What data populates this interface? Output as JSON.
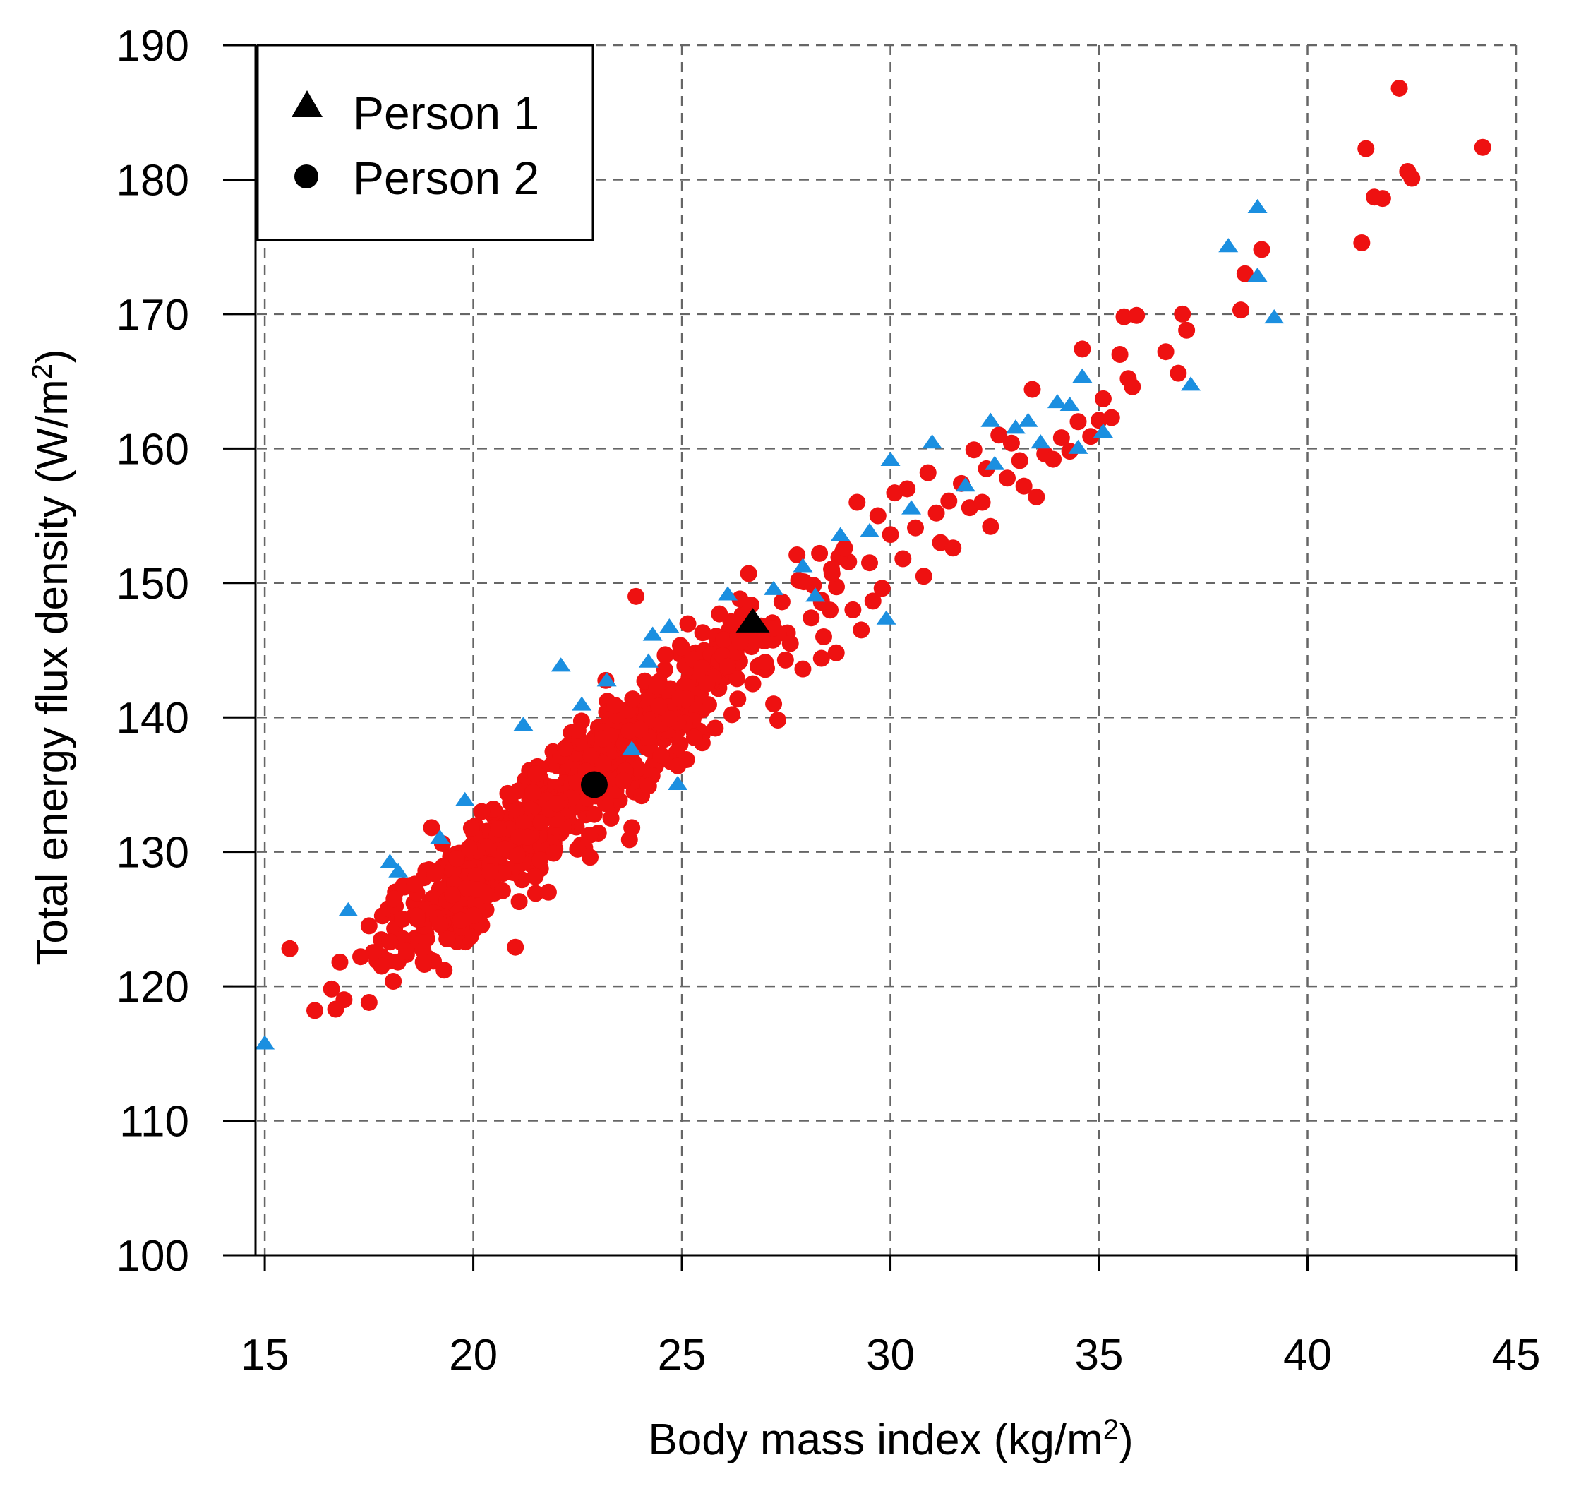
{
  "chart_data": {
    "type": "scatter",
    "title": "",
    "xlabel": "Body mass index (kg/m",
    "xlabel_sup": "2",
    "xlabel_end": ")",
    "ylabel": "Total energy flux density (W/m",
    "ylabel_sup": "2",
    "ylabel_end": ")",
    "xlim": [
      14,
      45
    ],
    "ylim": [
      100,
      190
    ],
    "xticks": [
      15,
      20,
      25,
      30,
      35,
      40,
      45
    ],
    "yticks": [
      100,
      110,
      120,
      130,
      140,
      150,
      160,
      170,
      180,
      190
    ],
    "grid": true,
    "legend_position": "top-left",
    "legend": [
      {
        "label": "Person 1",
        "marker": "triangle"
      },
      {
        "label": "Person 2",
        "marker": "circle"
      }
    ],
    "colors": {
      "person1_points": "#1b8fe0",
      "person2_points": "#ee1111",
      "highlight": "#000000"
    },
    "series": [
      {
        "name": "Person 1",
        "marker": "triangle",
        "points": [
          [
            15.0,
            115.7
          ],
          [
            17.0,
            125.6
          ],
          [
            18.0,
            129.2
          ],
          [
            18.2,
            128.5
          ],
          [
            19.2,
            131.0
          ],
          [
            19.8,
            133.8
          ],
          [
            21.2,
            139.4
          ],
          [
            22.1,
            143.8
          ],
          [
            22.6,
            140.9
          ],
          [
            23.2,
            142.7
          ],
          [
            24.3,
            146.1
          ],
          [
            24.7,
            146.7
          ],
          [
            24.9,
            135.0
          ],
          [
            26.1,
            149.1
          ],
          [
            27.2,
            149.5
          ],
          [
            27.9,
            151.2
          ],
          [
            28.2,
            149.0
          ],
          [
            28.8,
            153.5
          ],
          [
            29.5,
            153.8
          ],
          [
            29.9,
            147.3
          ],
          [
            30.0,
            159.1
          ],
          [
            30.5,
            155.5
          ],
          [
            31.0,
            160.4
          ],
          [
            31.8,
            157.2
          ],
          [
            32.4,
            162.0
          ],
          [
            32.5,
            158.8
          ],
          [
            33.0,
            161.5
          ],
          [
            33.3,
            162.0
          ],
          [
            33.6,
            160.4
          ],
          [
            34.0,
            163.4
          ],
          [
            34.3,
            163.2
          ],
          [
            34.6,
            165.3
          ],
          [
            34.5,
            160.0
          ],
          [
            35.1,
            161.2
          ],
          [
            37.2,
            164.7
          ],
          [
            38.1,
            175.0
          ],
          [
            38.8,
            177.9
          ],
          [
            38.8,
            172.8
          ],
          [
            39.2,
            169.7
          ],
          [
            23.8,
            137.6
          ],
          [
            24.2,
            144.1
          ]
        ]
      },
      {
        "name": "Person 2",
        "marker": "circle",
        "points": [
          [
            15.6,
            122.8
          ],
          [
            16.2,
            118.2
          ],
          [
            16.6,
            119.8
          ],
          [
            16.7,
            118.3
          ],
          [
            16.8,
            121.8
          ],
          [
            16.9,
            119.0
          ],
          [
            17.3,
            122.2
          ],
          [
            17.5,
            118.8
          ],
          [
            17.5,
            124.5
          ],
          [
            17.8,
            121.5
          ],
          [
            18.0,
            123.3
          ],
          [
            18.1,
            126.5
          ],
          [
            18.3,
            125.0
          ],
          [
            18.4,
            122.6
          ],
          [
            18.6,
            127.6
          ],
          [
            18.8,
            121.8
          ],
          [
            19.0,
            131.8
          ],
          [
            19.2,
            124.6
          ],
          [
            19.3,
            121.2
          ],
          [
            19.5,
            126.8
          ],
          [
            19.6,
            129.5
          ],
          [
            19.7,
            124.9
          ],
          [
            19.9,
            130.3
          ],
          [
            20.1,
            127.2
          ],
          [
            20.2,
            133.0
          ],
          [
            20.4,
            128.5
          ],
          [
            20.6,
            131.7
          ],
          [
            20.7,
            127.1
          ],
          [
            20.9,
            134.2
          ],
          [
            21.1,
            126.3
          ],
          [
            21.3,
            131.1
          ],
          [
            21.5,
            135.8
          ],
          [
            21.6,
            129.4
          ],
          [
            21.8,
            127.0
          ],
          [
            22.0,
            133.6
          ],
          [
            22.2,
            137.7
          ],
          [
            22.5,
            130.2
          ],
          [
            22.7,
            136.0
          ],
          [
            22.8,
            129.6
          ],
          [
            23.0,
            134.4
          ],
          [
            23.1,
            138.4
          ],
          [
            23.3,
            132.5
          ],
          [
            23.4,
            140.9
          ],
          [
            23.6,
            135.3
          ],
          [
            23.8,
            131.8
          ],
          [
            23.9,
            149.0
          ],
          [
            24.0,
            139.1
          ],
          [
            24.2,
            134.9
          ],
          [
            24.4,
            142.3
          ],
          [
            24.5,
            137.2
          ],
          [
            24.6,
            144.6
          ],
          [
            24.7,
            139.9
          ],
          [
            24.9,
            136.4
          ],
          [
            25.0,
            145.2
          ],
          [
            25.1,
            141.4
          ],
          [
            25.3,
            138.5
          ],
          [
            25.5,
            146.3
          ],
          [
            25.6,
            142.5
          ],
          [
            25.8,
            139.2
          ],
          [
            25.9,
            147.7
          ],
          [
            26.1,
            143.8
          ],
          [
            26.2,
            140.2
          ],
          [
            26.4,
            145.6
          ],
          [
            26.6,
            150.7
          ],
          [
            26.7,
            142.5
          ],
          [
            26.9,
            146.8
          ],
          [
            27.0,
            144.1
          ],
          [
            27.2,
            141.0
          ],
          [
            27.3,
            139.8
          ],
          [
            27.4,
            148.6
          ],
          [
            27.6,
            145.5
          ],
          [
            27.8,
            150.2
          ],
          [
            27.9,
            143.6
          ],
          [
            28.1,
            147.4
          ],
          [
            28.3,
            152.2
          ],
          [
            28.4,
            146.0
          ],
          [
            28.6,
            150.7
          ],
          [
            28.7,
            144.8
          ],
          [
            28.9,
            152.6
          ],
          [
            29.1,
            148.0
          ],
          [
            29.2,
            156.0
          ],
          [
            29.3,
            146.5
          ],
          [
            29.5,
            151.5
          ],
          [
            29.7,
            155.0
          ],
          [
            29.8,
            149.6
          ],
          [
            30.0,
            153.6
          ],
          [
            30.1,
            156.7
          ],
          [
            30.3,
            151.8
          ],
          [
            30.4,
            157.0
          ],
          [
            30.6,
            154.1
          ],
          [
            30.8,
            150.5
          ],
          [
            30.9,
            158.2
          ],
          [
            31.1,
            155.2
          ],
          [
            31.2,
            153.0
          ],
          [
            31.4,
            156.1
          ],
          [
            31.5,
            152.6
          ],
          [
            31.7,
            157.4
          ],
          [
            31.9,
            155.6
          ],
          [
            32.0,
            159.9
          ],
          [
            32.2,
            156.0
          ],
          [
            32.3,
            158.5
          ],
          [
            32.4,
            154.2
          ],
          [
            32.6,
            161.0
          ],
          [
            32.8,
            157.8
          ],
          [
            32.9,
            160.4
          ],
          [
            33.1,
            159.1
          ],
          [
            33.2,
            157.2
          ],
          [
            33.4,
            164.4
          ],
          [
            33.5,
            156.4
          ],
          [
            33.7,
            159.6
          ],
          [
            33.9,
            159.2
          ],
          [
            34.1,
            160.8
          ],
          [
            34.3,
            159.8
          ],
          [
            34.5,
            162.0
          ],
          [
            34.6,
            167.4
          ],
          [
            34.8,
            160.9
          ],
          [
            35.0,
            162.1
          ],
          [
            35.1,
            163.7
          ],
          [
            35.3,
            162.3
          ],
          [
            35.5,
            167.0
          ],
          [
            35.6,
            169.8
          ],
          [
            35.7,
            165.2
          ],
          [
            35.8,
            164.6
          ],
          [
            35.9,
            169.9
          ],
          [
            36.6,
            167.2
          ],
          [
            36.9,
            165.6
          ],
          [
            37.0,
            170.0
          ],
          [
            37.1,
            168.8
          ],
          [
            38.4,
            170.3
          ],
          [
            38.5,
            173.0
          ],
          [
            38.9,
            174.8
          ],
          [
            41.3,
            175.3
          ],
          [
            41.4,
            182.3
          ],
          [
            41.6,
            178.7
          ],
          [
            41.8,
            178.6
          ],
          [
            42.2,
            186.8
          ],
          [
            42.4,
            180.6
          ],
          [
            42.5,
            180.1
          ],
          [
            44.2,
            182.4
          ]
        ],
        "cluster_note": "dense cloud of additional points following y ≈ 2.53x + 77.8 between x 17 and 30"
      }
    ],
    "highlights": [
      {
        "name": "Person 1 mean",
        "marker": "triangle",
        "x": 26.7,
        "y": 147.0
      },
      {
        "name": "Person 2 mean",
        "marker": "circle",
        "x": 22.9,
        "y": 135.0
      }
    ]
  }
}
